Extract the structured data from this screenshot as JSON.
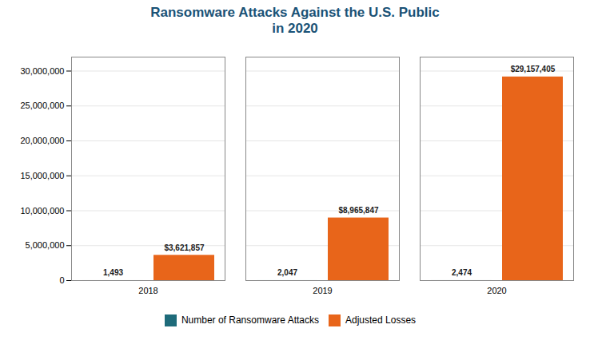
{
  "chart_data": {
    "type": "bar",
    "title": "Ransomware Attacks Against the U.S. Public\nin 2020",
    "categories": [
      "2018",
      "2019",
      "2020"
    ],
    "series": [
      {
        "name": "Number of Ransomware Attacks",
        "color": "#1e6b7a",
        "values": [
          1493,
          2047,
          2474
        ],
        "value_labels": [
          "1,493",
          "2,047",
          "2,474"
        ]
      },
      {
        "name": "Adjusted Losses",
        "color": "#e8651a",
        "values": [
          3621857,
          8965847,
          29157405
        ],
        "value_labels": [
          "$3,621,857",
          "$8,965,847",
          "$29,157,405"
        ]
      }
    ],
    "ylim": [
      0,
      32000000
    ],
    "yticks": [
      0,
      {
        "value": 5000000,
        "label": "5,000,000"
      },
      {
        "value": 10000000,
        "label": "10,000,000"
      },
      {
        "value": 15000000,
        "label": "15,000,000"
      },
      {
        "value": 20000000,
        "label": "20,000,000"
      },
      {
        "value": 25000000,
        "label": "25,000,000"
      },
      {
        "value": 30000000,
        "label": "30,000,000"
      }
    ],
    "grid": true,
    "legend": "bottom",
    "data_labels": true
  }
}
